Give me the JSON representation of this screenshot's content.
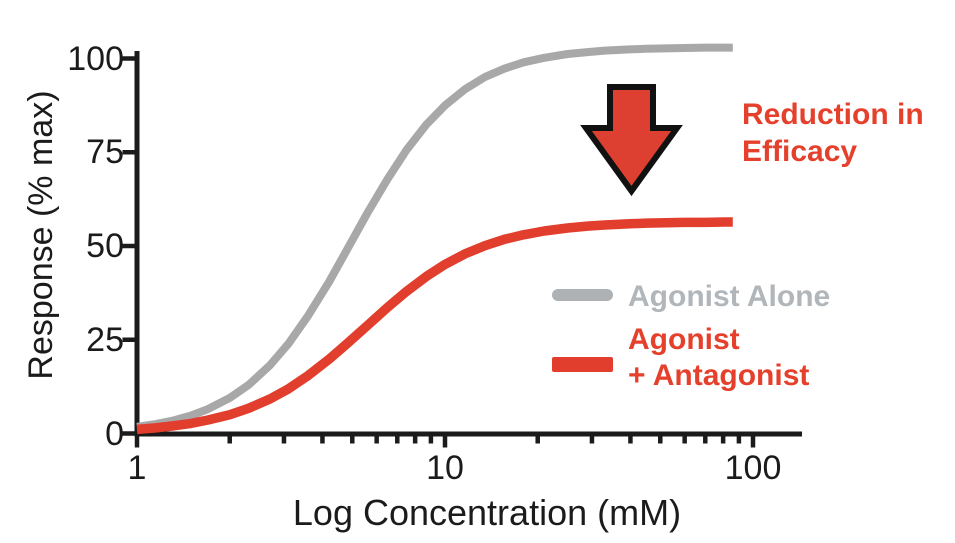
{
  "colors": {
    "axis": "#1b1b1b",
    "gray_curve": "#a8a8a8",
    "gray_swatch": "#afb2b4",
    "gray_text": "#b1b6ba",
    "red_curve": "#e23e2d",
    "red_text": "#e5402c",
    "arrow_fill": "#dd4030",
    "arrow_outline": "#111111",
    "background": "#ffffff"
  },
  "annotation": {
    "line1": "Reduction in",
    "line2": "Efficacy"
  },
  "legend": {
    "items": [
      {
        "label": "Agonist Alone",
        "color_key": "gray"
      },
      {
        "label_line1": "Agonist",
        "label_line2": "+ Antagonist",
        "color_key": "red"
      }
    ]
  },
  "chart_data": {
    "type": "line",
    "title": "",
    "xlabel": "Log Concentration (mM)",
    "ylabel": "Response (% max)",
    "x_scale": "log",
    "xlim": [
      1,
      144
    ],
    "ylim": [
      0,
      103
    ],
    "grid": false,
    "legend_position": "inside-right",
    "y_ticks": [
      100,
      75,
      50,
      25,
      0
    ],
    "x_ticks": [
      1,
      10,
      100
    ],
    "x_minor_ticks": [
      2,
      3,
      4,
      5,
      6,
      7,
      8,
      9,
      20,
      30,
      40,
      50,
      60,
      70,
      80,
      90
    ],
    "x": [
      1,
      1.15,
      1.3,
      1.5,
      1.7,
      2,
      2.3,
      2.7,
      3.1,
      3.6,
      4.2,
      4.8,
      5.6,
      6.5,
      7.5,
      8.7,
      10,
      11.6,
      13.5,
      15.6,
      18,
      21,
      25,
      29,
      33,
      39,
      45,
      52,
      60,
      70,
      81,
      86
    ],
    "series": [
      {
        "name": "Agonist Alone",
        "color_key": "gray_curve",
        "emax_pct": 103,
        "ec50_mM": 5,
        "values": [
          1.8,
          2.5,
          3.4,
          4.8,
          6.5,
          9.5,
          12.9,
          18.2,
          23.9,
          31.5,
          40.4,
          48.9,
          58.8,
          67.8,
          75.6,
          82.4,
          87.5,
          91.8,
          95.1,
          97.3,
          99,
          100.2,
          101.2,
          101.7,
          102.1,
          102.4,
          102.6,
          102.7,
          102.8,
          102.9,
          102.9,
          102.9
        ]
      },
      {
        "name": "Agonist + Antagonist",
        "color_key": "red_curve",
        "emax_pct": 56,
        "ec50_mM": 5.5,
        "values": [
          1.1,
          1.5,
          2,
          2.7,
          3.6,
          5,
          6.7,
          9.2,
          11.9,
          15.5,
          19.8,
          23.9,
          28.8,
          33.6,
          37.9,
          41.9,
          45.1,
          47.9,
          50.1,
          51.8,
          53,
          54,
          54.8,
          55.3,
          55.6,
          55.9,
          56.1,
          56.2,
          56.3,
          56.3,
          56.4,
          56.4
        ]
      }
    ],
    "annotations": [
      {
        "text": "Reduction in Efficacy",
        "marker": "down-arrow"
      }
    ]
  }
}
